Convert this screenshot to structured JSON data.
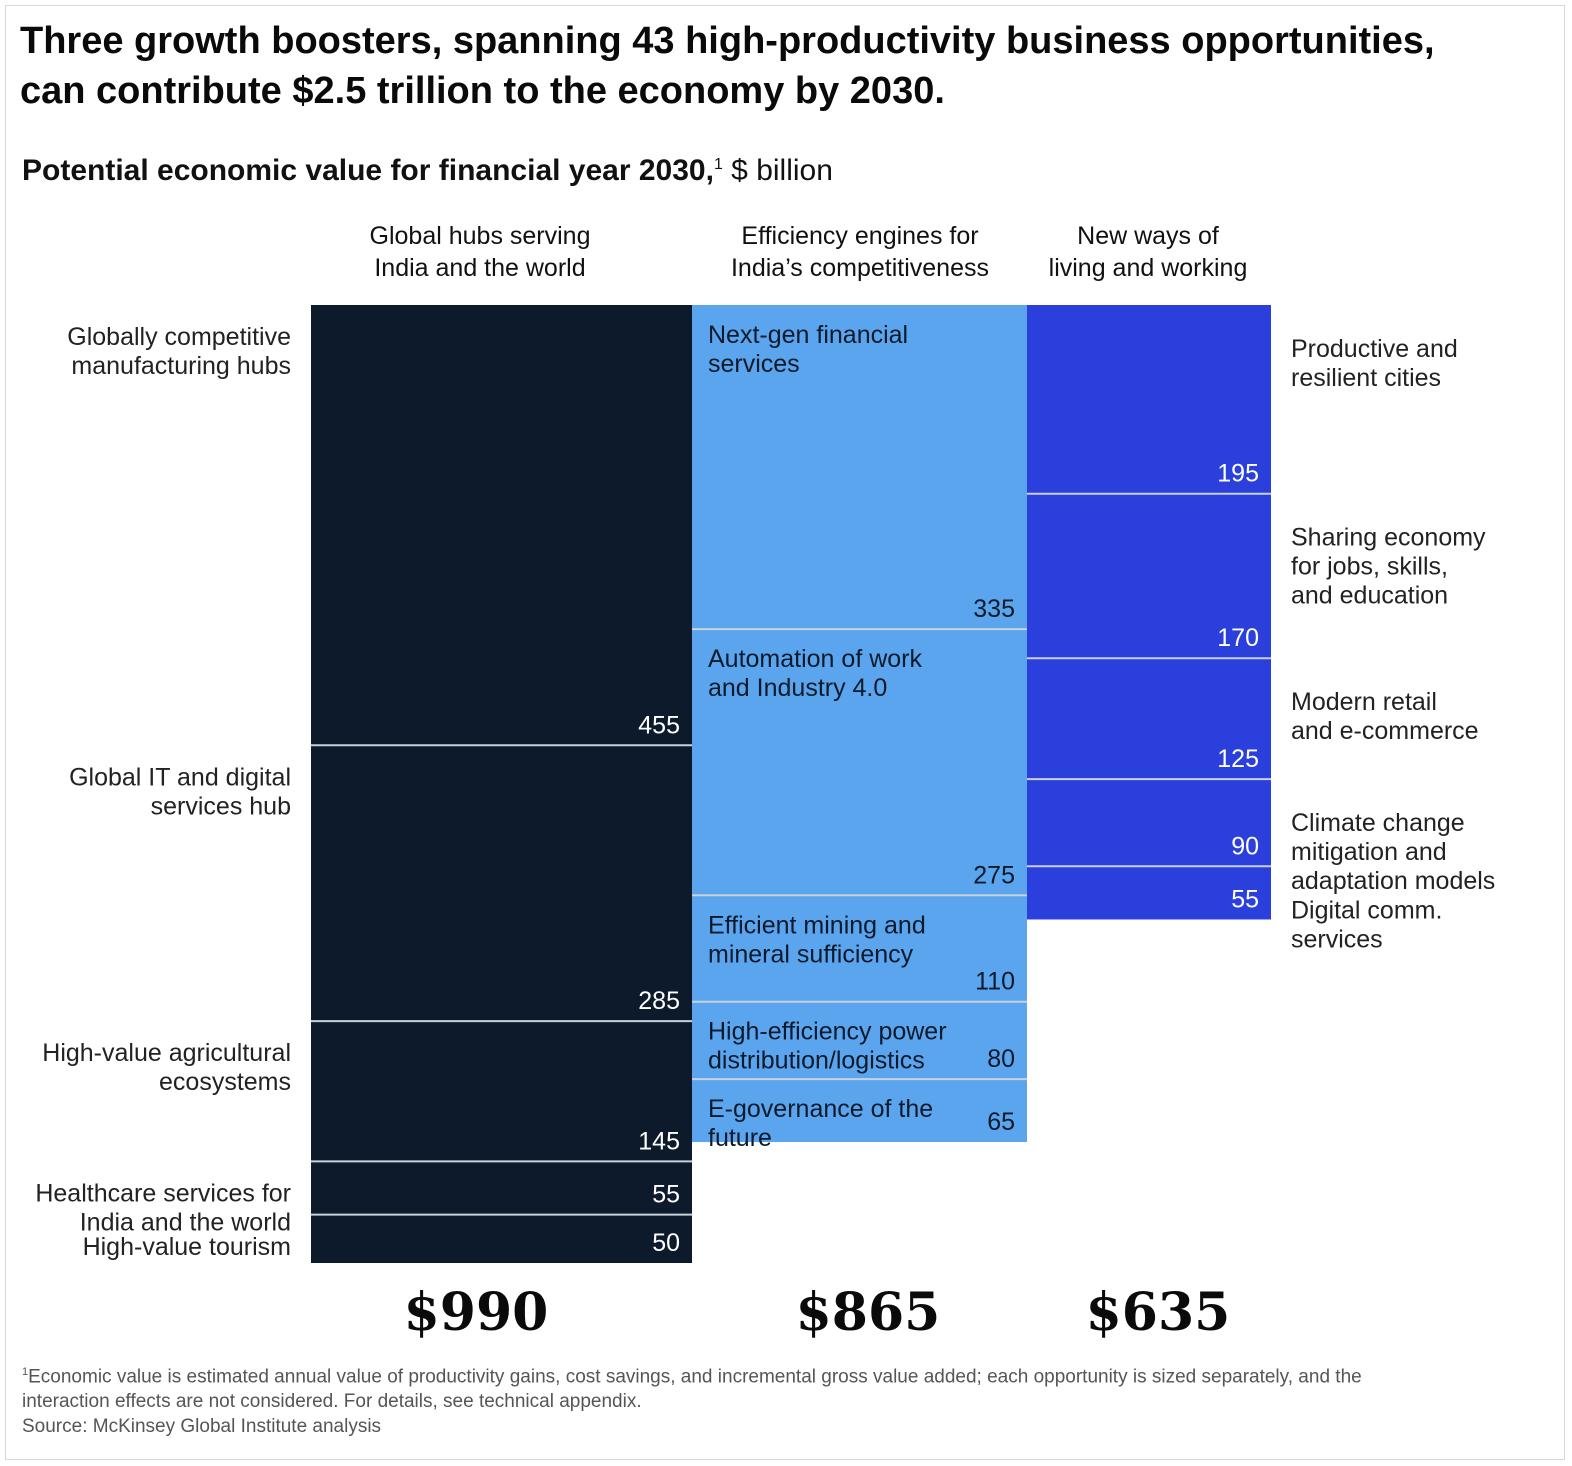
{
  "title": {
    "line1": "Three growth boosters, spanning 43 high-productivity business opportunities,",
    "line2": "can contribute $2.5 trillion to the economy by 2030."
  },
  "subtitle": {
    "bold": "Potential economic value for financial year 2030,",
    "footnote_mark": "1",
    "unit": " $ billion"
  },
  "colors": {
    "global_hubs": "#0d1a2b",
    "efficiency_engines": "#5aa5ee",
    "new_ways": "#2a3fdc",
    "separator": "#c8d2dc"
  },
  "chart_data": {
    "type": "bar",
    "subtype": "stacked-mekko",
    "title": "Three growth boosters, spanning 43 high-productivity business opportunities, can contribute $2.5 trillion to the economy by 2030.",
    "subtitle": "Potential economic value for financial year 2030, $ billion",
    "unit": "$ billion",
    "ylim": [
      0,
      990
    ],
    "grid": false,
    "legend": "none",
    "categories": [
      {
        "id": "global_hubs",
        "header_line1": "Global hubs serving",
        "header_line2": "India and the world",
        "total": 990,
        "total_label": "$990",
        "label_side": "left",
        "segments": [
          {
            "line1": "Globally competitive",
            "line2": "manufacturing hubs",
            "value": 455
          },
          {
            "line1": "Global IT and digital",
            "line2": "services hub",
            "value": 285
          },
          {
            "line1": "High-value agricultural",
            "line2": "ecosystems",
            "value": 145
          },
          {
            "line1": "Healthcare services for",
            "line2": "India and the world",
            "value": 55
          },
          {
            "line1": "High-value tourism",
            "value": 50
          }
        ]
      },
      {
        "id": "efficiency_engines",
        "header_line1": "Efficiency engines for",
        "header_line2": "India’s competitiveness",
        "total": 865,
        "total_label": "$865",
        "label_side": "inside",
        "segments": [
          {
            "line1": "Next-gen financial",
            "line2": "services",
            "value": 335
          },
          {
            "line1": "Automation of work",
            "line2": "and Industry 4.0",
            "value": 275
          },
          {
            "line1": "Efficient mining and",
            "line2": "mineral sufficiency",
            "value": 110
          },
          {
            "line1": "High-efficiency power",
            "line2": "distribution/logistics",
            "value": 80
          },
          {
            "line1": "E-governance of the",
            "line2": "future",
            "value": 65
          }
        ]
      },
      {
        "id": "new_ways",
        "header_line1": "New ways of",
        "header_line2": "living and working",
        "total": 635,
        "total_label": "$635",
        "label_side": "right",
        "segments": [
          {
            "line1": "Productive and",
            "line2": "resilient cities",
            "value": 195
          },
          {
            "line1": "Sharing economy",
            "line2": "for jobs, skills,",
            "line3": "and education",
            "value": 170
          },
          {
            "line1": "Modern retail",
            "line2": "and e-commerce",
            "value": 125
          },
          {
            "line1": "Climate change",
            "line2": "mitigation and",
            "line3": "adaptation models",
            "value": 90
          },
          {
            "line1": "Digital comm.",
            "line2": "services",
            "value": 55
          }
        ]
      }
    ]
  },
  "footnote": {
    "mark": "1",
    "line1": "Economic value is estimated annual value of productivity gains, cost savings, and incremental gross value added; each opportunity is sized separately, and the",
    "line2": "interaction effects are not considered. For details, see technical appendix.",
    "source": "Source: McKinsey Global Institute analysis"
  }
}
